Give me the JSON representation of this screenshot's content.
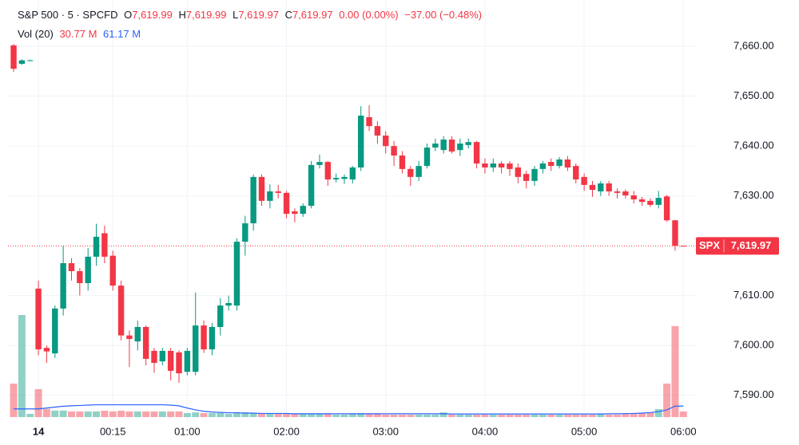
{
  "chart_data": {
    "type": "candlestick",
    "title": "S&P 500 · 5 · SPCFD",
    "ohlc": [
      {
        "label": "O",
        "value": "7,619.99"
      },
      {
        "label": "H",
        "value": "7,619.99"
      },
      {
        "label": "L",
        "value": "7,619.97"
      },
      {
        "label": "C",
        "value": "7,619.97"
      }
    ],
    "change": "0.00 (0.00%)",
    "change_session": "−37.00 (−0.48%)",
    "volume_title": "Vol (20)",
    "volume_value": "30.77 M",
    "volume_ma_value": "61.17 M",
    "price_tag": {
      "name": "SPX",
      "value": "7,619.97"
    },
    "up_color": "#089981",
    "down_color": "#f23645",
    "volume_up_color": "rgba(8,153,129,0.45)",
    "volume_down_color": "rgba(242,54,69,0.45)",
    "ma_color": "#2962ff",
    "grid": true,
    "xlim": [
      -0.68,
      82.42
    ],
    "ylim": [
      7584.5,
      7669.3
    ],
    "yticks": [
      {
        "value": 7660,
        "label": "7,660.00"
      },
      {
        "value": 7650,
        "label": "7,650.00"
      },
      {
        "value": 7640,
        "label": "7,640.00"
      },
      {
        "value": 7630,
        "label": "7,630.00"
      },
      {
        "value": 7610,
        "label": "7,610.00"
      },
      {
        "value": 7600,
        "label": "7,600.00"
      },
      {
        "value": 7590,
        "label": "7,590.00"
      }
    ],
    "xticks": [
      {
        "value": 3,
        "label": "14"
      },
      {
        "value": 12,
        "label": "00:15"
      },
      {
        "value": 21,
        "label": "01:00"
      },
      {
        "value": 33,
        "label": "02:00"
      },
      {
        "value": 45,
        "label": "03:00"
      },
      {
        "value": 57,
        "label": "04:00"
      },
      {
        "value": 69,
        "label": "05:00"
      },
      {
        "value": 81,
        "label": "06:00"
      }
    ],
    "open": [
      7660.2,
      7656.5,
      7657.2,
      7611.4,
      7599.5,
      7598.4,
      7607.4,
      7616.5,
      7614.9,
      7612.5,
      7617.8,
      7622.5,
      7618,
      7612,
      7602,
      7600.8,
      7603.7,
      7598.9,
      7596.8,
      7598.9,
      7598.6,
      7594.7,
      7594.7,
      7604,
      7599.2,
      7603.7,
      7608,
      7608,
      7620.8,
      7624.5,
      7633.8,
      7629,
      7630.9,
      7630.6,
      7626.9,
      7626.4,
      7628,
      7636.2,
      7636.8,
      7633.3,
      7633.4,
      7633.3,
      7635.7,
      7645.8,
      7644,
      7642.1,
      7640,
      7638.1,
      7635.4,
      7633.8,
      7636,
      7639.7,
      7639.2,
      7641.3,
      7639.2,
      7640.2,
      7640.8,
      7636.5,
      7635.7,
      7636.5,
      7636.5,
      7635.7,
      7634.4,
      7633,
      7635.4,
      7636.8,
      7636,
      7637.3,
      7636,
      7633.8,
      7632.2,
      7630.9,
      7632.5,
      7630.9,
      7630.9,
      7630.1,
      7629.3,
      7629,
      7628.2,
      7629.9,
      7625.1,
      7619.99
    ],
    "high": [
      7660.5,
      7657.4,
      7657.4,
      7613,
      7600,
      7608,
      7620,
      7617.5,
      7615.5,
      7619.5,
      7624.4,
      7624,
      7619,
      7613,
      7603,
      7605,
      7604,
      7599.5,
      7599.5,
      7599.5,
      7599,
      7599.5,
      7610.6,
      7605,
      7604.5,
      7609.5,
      7610,
      7621.5,
      7626,
      7634.3,
      7634.3,
      7632.3,
      7632.2,
      7631,
      7627.5,
      7628.5,
      7637,
      7638.3,
      7637,
      7634.5,
      7634.3,
      7636,
      7648,
      7648.2,
      7645,
      7643,
      7641,
      7639,
      7636,
      7637,
      7640.5,
      7641.5,
      7642,
      7642,
      7641.5,
      7641.5,
      7641,
      7637.5,
      7637.5,
      7637,
      7637,
      7636.5,
      7635,
      7636,
      7637,
      7637.5,
      7637.8,
      7638,
      7636.5,
      7634.5,
      7633,
      7633,
      7633,
      7631.5,
      7631.3,
      7631,
      7629.8,
      7629.5,
      7631,
      7630.2,
      7625.2,
      7619.99
    ],
    "low": [
      7654.9,
      7656.3,
      7657.2,
      7598,
      7596.5,
      7597.5,
      7606,
      7613,
      7610,
      7611,
      7616,
      7616.5,
      7611,
      7601,
      7595.7,
      7599,
      7596,
      7594.5,
      7596,
      7593,
      7592.5,
      7594,
      7594,
      7598.5,
      7598,
      7602,
      7607,
      7607,
      7618,
      7623,
      7628,
      7627.5,
      7629.5,
      7625.5,
      7624.7,
      7625.8,
      7627.5,
      7635.5,
      7632,
      7632.7,
      7632.4,
      7632.5,
      7635,
      7643,
      7640.5,
      7638.5,
      7636,
      7634.5,
      7632,
      7633,
      7635.5,
      7639,
      7638.5,
      7638.5,
      7638,
      7639.5,
      7635.5,
      7634.5,
      7634.8,
      7634.5,
      7634,
      7632.5,
      7631.5,
      7632,
      7634.5,
      7635,
      7635.5,
      7635,
      7632.5,
      7631,
      7629.8,
      7630,
      7630,
      7629.5,
      7629.5,
      7628.5,
      7628,
      7627.8,
      7627.5,
      7624.8,
      7619,
      7619.97
    ],
    "close": [
      7655.5,
      7657.2,
      7657.2,
      7599.2,
      7598.8,
      7607.4,
      7616.5,
      7614.9,
      7612.5,
      7617.8,
      7621.8,
      7617.8,
      7612,
      7602,
      7601.3,
      7603.7,
      7597.3,
      7596.5,
      7598.9,
      7594.9,
      7594.4,
      7598.9,
      7604,
      7599.2,
      7603.7,
      7608,
      7608.5,
      7620.8,
      7624.5,
      7633.8,
      7629,
      7630.9,
      7630.6,
      7626.4,
      7626.4,
      7628,
      7636.2,
      7636.8,
      7633.3,
      7633.6,
      7633.8,
      7635.7,
      7646.1,
      7644,
      7642.1,
      7640,
      7638.1,
      7635.4,
      7633.8,
      7636,
      7639.7,
      7640.5,
      7641.3,
      7638.9,
      7640.5,
      7640.8,
      7636.5,
      7635.7,
      7636.5,
      7635.7,
      7635.4,
      7633.8,
      7633,
      7635.4,
      7636.5,
      7636,
      7637.3,
      7635.7,
      7633.3,
      7632.2,
      7631.2,
      7632.5,
      7630.9,
      7630.6,
      7630.1,
      7629.3,
      7628.8,
      7628.2,
      7629.6,
      7625.1,
      7620,
      7619.97
    ],
    "volume": [
      185,
      563,
      18,
      154,
      45,
      36,
      36,
      31,
      31,
      31,
      31,
      35,
      31,
      35,
      31,
      31,
      31,
      31,
      31,
      31,
      31,
      22,
      26,
      22,
      22,
      22,
      18,
      22,
      26,
      22,
      22,
      18,
      18,
      18,
      18,
      18,
      18,
      18,
      18,
      13,
      13,
      18,
      22,
      18,
      18,
      13,
      13,
      13,
      13,
      13,
      13,
      13,
      26,
      13,
      13,
      13,
      13,
      13,
      13,
      13,
      13,
      13,
      13,
      13,
      13,
      13,
      13,
      13,
      13,
      13,
      13,
      18,
      13,
      13,
      18,
      22,
      22,
      26,
      44,
      185,
      502,
      30.77
    ],
    "volume_ma": [
      45,
      45,
      45,
      45,
      50,
      55,
      60,
      62,
      64,
      66,
      68,
      68,
      68,
      68,
      68,
      68,
      68,
      68,
      68,
      66,
      62,
      50,
      40,
      32,
      28,
      26,
      24,
      24,
      22,
      22,
      20,
      20,
      20,
      20,
      18,
      18,
      18,
      18,
      18,
      18,
      18,
      18,
      18,
      18,
      18,
      18,
      18,
      18,
      18,
      18,
      18,
      18,
      18,
      17,
      17,
      17,
      17,
      17,
      17,
      17,
      17,
      17,
      17,
      17,
      17,
      17,
      17,
      17,
      17,
      17,
      17,
      17,
      18,
      18,
      19,
      20,
      22,
      25,
      30,
      40,
      60,
      61.17
    ]
  }
}
